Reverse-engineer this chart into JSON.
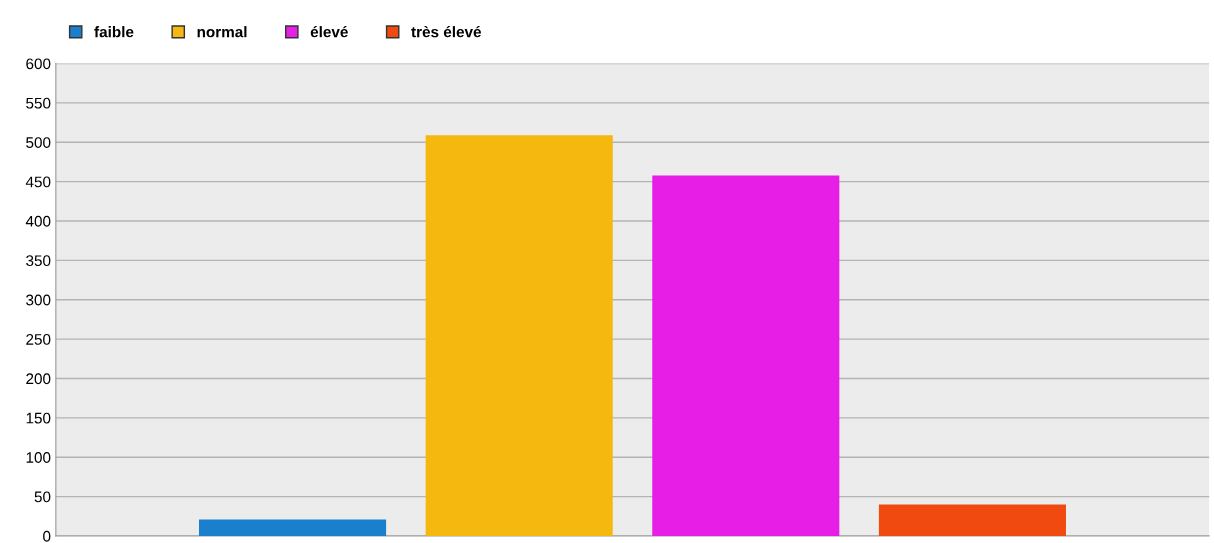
{
  "chart_data": {
    "type": "bar",
    "categories": [
      null
    ],
    "series": [
      {
        "name": "faible",
        "color": "#1a7fcc",
        "values": [
          20
        ]
      },
      {
        "name": "normal",
        "color": "#f4b80e",
        "values": [
          508
        ]
      },
      {
        "name": "élevé",
        "color": "#e61ee6",
        "values": [
          457
        ]
      },
      {
        "name": "très élevé",
        "color": "#f04a10",
        "values": [
          39
        ]
      }
    ],
    "ylim": [
      0,
      600
    ],
    "yticks": [
      0,
      50,
      100,
      150,
      200,
      250,
      300,
      350,
      400,
      450,
      500,
      550,
      600
    ],
    "grid": "y",
    "legend": "top left"
  }
}
